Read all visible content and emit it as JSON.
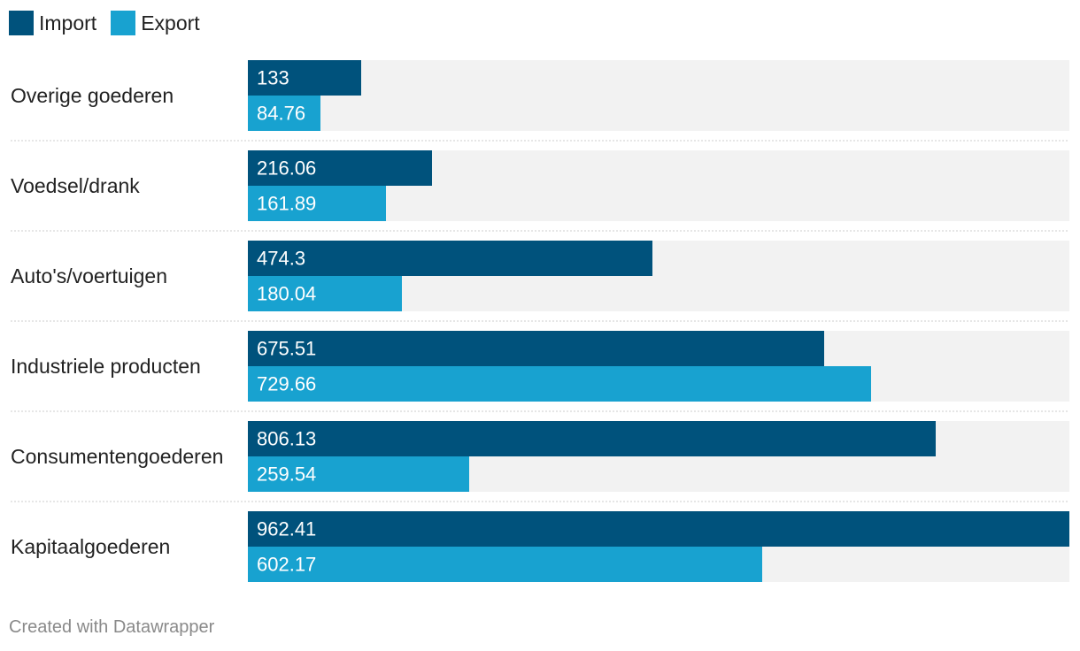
{
  "chart_data": {
    "type": "bar",
    "orientation": "horizontal",
    "categories": [
      "Overige goederen",
      "Voedsel/drank",
      "Auto's/voertuigen",
      "Industriele producten",
      "Consumentengoederen",
      "Kapitaalgoederen"
    ],
    "series": [
      {
        "name": "Import",
        "color": "#00527c",
        "values": [
          133,
          216.06,
          474.3,
          675.51,
          806.13,
          962.41
        ]
      },
      {
        "name": "Export",
        "color": "#18a2d0",
        "values": [
          84.76,
          161.89,
          180.04,
          729.66,
          259.54,
          602.17
        ]
      }
    ],
    "value_labels": {
      "Import": [
        "133",
        "216.06",
        "474.3",
        "675.51",
        "806.13",
        "962.41"
      ],
      "Export": [
        "84.76",
        "161.89",
        "180.04",
        "729.66",
        "259.54",
        "602.17"
      ]
    },
    "xlim": [
      0,
      962.41
    ],
    "legend_position": "top-left",
    "background_color": "#f2f2f2",
    "separator_color": "#cccccc"
  },
  "legend": {
    "items": [
      {
        "label": "Import",
        "color": "#00527c"
      },
      {
        "label": "Export",
        "color": "#18a2d0"
      }
    ]
  },
  "footer": {
    "text": "Created with Datawrapper"
  }
}
